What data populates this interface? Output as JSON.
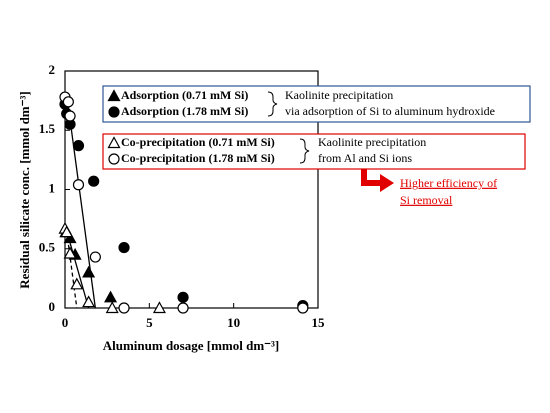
{
  "chart_data": {
    "type": "scatter",
    "xlabel": "Aluminum dosage [mmol dm⁻³]",
    "ylabel": "Residual silicate conc. [mmol dm⁻³]",
    "xlim": [
      0,
      15
    ],
    "xticks": [
      0,
      5,
      10,
      15
    ],
    "ylim": [
      0,
      2
    ],
    "yticks": [
      0,
      0.5,
      1,
      1.5,
      2
    ],
    "series": [
      {
        "name": "Adsorption (0.71 mM Si)",
        "color": "#000000",
        "marker": "triangle",
        "filled": true,
        "x": [
          0.05,
          0.3,
          0.6,
          1.4,
          2.7
        ],
        "values": [
          0.64,
          0.59,
          0.45,
          0.3,
          0.09
        ]
      },
      {
        "name": "Adsorption (1.78 mM Si)",
        "color": "#000000",
        "marker": "circle",
        "filled": true,
        "x": [
          0,
          0.1,
          0.3,
          0.8,
          1.7,
          3.5,
          7,
          14.1
        ],
        "values": [
          1.72,
          1.64,
          1.55,
          1.37,
          1.07,
          0.51,
          0.09,
          0.02
        ]
      },
      {
        "name": "Co-precipitation (0.71 mM Si)",
        "color": "#000000",
        "marker": "triangle",
        "filled": false,
        "x": [
          0,
          0.1,
          0.3,
          0.7,
          1.4,
          2.8,
          5.6
        ],
        "values": [
          0.67,
          0.64,
          0.46,
          0.2,
          0.05,
          0,
          0
        ]
      },
      {
        "name": "Co-precipitation (1.78 mM Si)",
        "color": "#000000",
        "marker": "circle",
        "filled": false,
        "x": [
          0,
          0.2,
          0.3,
          0.8,
          1.8,
          3.5,
          7,
          14.1
        ],
        "values": [
          1.78,
          1.74,
          1.62,
          1.04,
          0.43,
          0,
          0,
          0
        ]
      }
    ],
    "trend_lines": [
      {
        "x": [
          0.1,
          1.8
        ],
        "values": [
          1.8,
          0
        ],
        "dashed": false
      },
      {
        "x": [
          0.1,
          1.4
        ],
        "values": [
          0.65,
          0
        ],
        "dashed": false
      },
      {
        "x": [
          0.1,
          0.7
        ],
        "values": [
          0.65,
          0
        ],
        "dashed": true
      }
    ],
    "annotations": {
      "adsorption_note": [
        "Kaolinite precipitation",
        "via adsorption of Si to aluminum hydroxide"
      ],
      "coprecipitation_note": [
        "Kaolinite precipitation",
        "from Al and Si ions"
      ],
      "highlight": [
        "Higher efficiency of",
        "Si removal"
      ]
    }
  }
}
